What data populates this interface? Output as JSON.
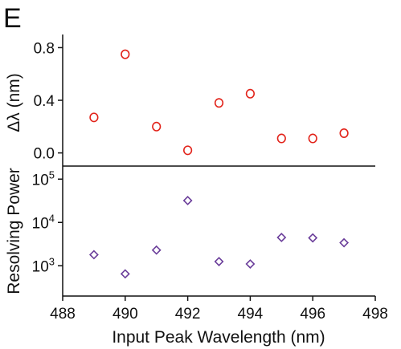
{
  "panel_label": "E",
  "colors": {
    "top_marker": "#e2231a",
    "bottom_marker": "#6a3d9a",
    "axis": "#111111"
  },
  "chart_data": [
    {
      "type": "scatter",
      "marker": "circle",
      "ylabel": "Δλ (nm)",
      "xlim": [
        488,
        498
      ],
      "ylim": [
        -0.1,
        0.9
      ],
      "yticks": [
        0.0,
        0.4,
        0.8
      ],
      "ytick_labels": [
        "0.0",
        "0.4",
        "0.8"
      ],
      "x": [
        489,
        490,
        491,
        492,
        493,
        494,
        495,
        496,
        497
      ],
      "y": [
        0.27,
        0.75,
        0.2,
        0.02,
        0.38,
        0.45,
        0.11,
        0.11,
        0.15
      ],
      "grid": false
    },
    {
      "type": "scatter",
      "marker": "diamond",
      "ylabel": "Resolving Power",
      "xlabel": "Input Peak Wavelength (nm)",
      "xlim": [
        488,
        498
      ],
      "xticks": [
        488,
        490,
        492,
        494,
        496,
        498
      ],
      "xtick_labels": [
        "488",
        "490",
        "492",
        "494",
        "496",
        "498"
      ],
      "yscale": "log",
      "ylim": [
        200,
        200000
      ],
      "yticks": [
        1000,
        10000,
        100000
      ],
      "ytick_labels": [
        {
          "base": "10",
          "exp": "3"
        },
        {
          "base": "10",
          "exp": "4"
        },
        {
          "base": "10",
          "exp": "5"
        }
      ],
      "x": [
        489,
        490,
        491,
        492,
        493,
        494,
        495,
        496,
        497
      ],
      "y": [
        1800,
        650,
        2300,
        32000,
        1250,
        1100,
        4500,
        4400,
        3400
      ],
      "grid": false
    }
  ]
}
